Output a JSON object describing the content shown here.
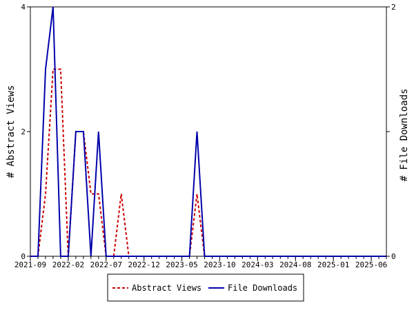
{
  "chart_data": {
    "type": "line",
    "x_tick_labels": [
      "2021-09",
      "2022-02",
      "2022-07",
      "2022-12",
      "2023-05",
      "2023-10",
      "2024-03",
      "2024-08",
      "2025-01",
      "2025-06"
    ],
    "y_left": {
      "label": "# Abstract Views",
      "ticks": [
        0,
        2,
        4
      ],
      "range": [
        0,
        4
      ]
    },
    "y_right": {
      "label": "# File Downloads",
      "ticks": [
        0,
        1,
        2
      ],
      "tick_labels": [
        "0",
        "",
        "2"
      ],
      "range": [
        0,
        2
      ]
    },
    "x_range": [
      "2021-09",
      "2025-08"
    ],
    "series": [
      {
        "name": "Abstract Views",
        "axis": "left",
        "color": "#cc0000",
        "dash": "dashed",
        "points": [
          [
            "2021-10",
            0
          ],
          [
            "2021-11",
            1
          ],
          [
            "2021-12",
            3
          ],
          [
            "2022-01",
            3
          ],
          [
            "2022-02",
            0
          ],
          [
            "2022-03",
            2
          ],
          [
            "2022-04",
            2
          ],
          [
            "2022-05",
            1
          ],
          [
            "2022-06",
            1
          ],
          [
            "2022-07",
            0
          ],
          [
            "2022-08",
            0
          ],
          [
            "2022-09",
            1
          ],
          [
            "2022-10",
            0
          ],
          [
            "2023-06",
            0
          ],
          [
            "2023-07",
            1
          ],
          [
            "2023-08",
            0
          ],
          [
            "2025-08",
            0
          ]
        ]
      },
      {
        "name": "File Downloads",
        "axis": "right",
        "color": "#0000aa",
        "dash": "solid",
        "points": [
          [
            "2021-09",
            0
          ],
          [
            "2021-10",
            0
          ],
          [
            "2021-11",
            1.5
          ],
          [
            "2021-12",
            2
          ],
          [
            "2022-01",
            0
          ],
          [
            "2022-02",
            0
          ],
          [
            "2022-03",
            1
          ],
          [
            "2022-04",
            1
          ],
          [
            "2022-05",
            0
          ],
          [
            "2022-06",
            1
          ],
          [
            "2022-07",
            0
          ],
          [
            "2023-06",
            0
          ],
          [
            "2023-07",
            1
          ],
          [
            "2023-08",
            0
          ],
          [
            "2025-08",
            0
          ]
        ]
      }
    ],
    "legend": {
      "placement": "bottom-center",
      "entries": [
        "Abstract Views",
        "File Downloads"
      ]
    },
    "grid": false
  }
}
